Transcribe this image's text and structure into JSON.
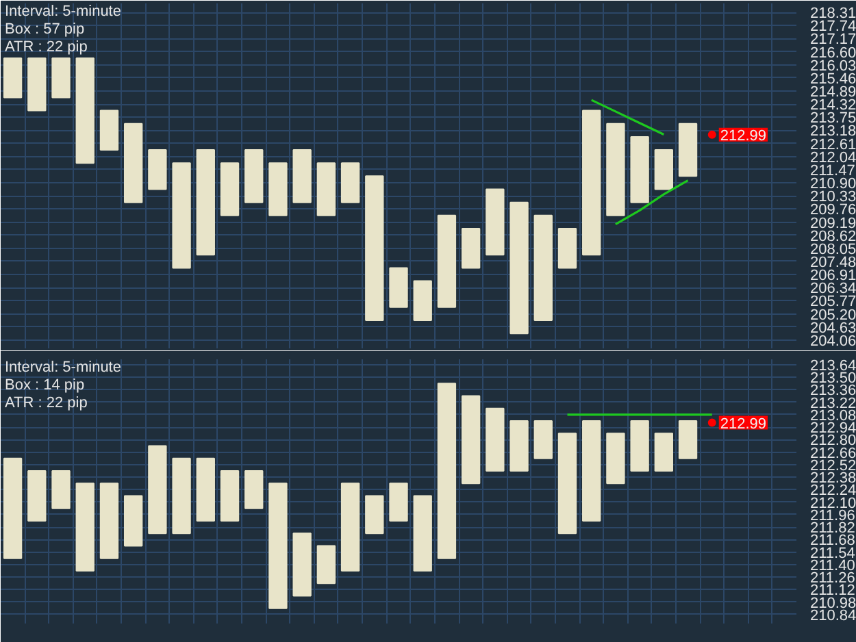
{
  "chart_data": [
    {
      "type": "bar",
      "categories": [
        null,
        null,
        null,
        null,
        null,
        null,
        null,
        null,
        null,
        null,
        null,
        null,
        null,
        null,
        null,
        null,
        null,
        null,
        null,
        null,
        null,
        null,
        null,
        null,
        null,
        null,
        null,
        null,
        null,
        null,
        null,
        null,
        null
      ],
      "ylim": [
        203.7,
        218.7
      ],
      "yticks": [
        218.31,
        217.74,
        217.17,
        {
          "value": 216.6,
          "label": "216.60"
        },
        216.03,
        215.46,
        214.89,
        214.32,
        213.75,
        213.18,
        212.61,
        212.04,
        211.47,
        {
          "value": 210.9,
          "label": "210.90"
        },
        210.33,
        209.76,
        209.19,
        208.62,
        208.05,
        207.48,
        206.91,
        206.34,
        205.77,
        {
          "value": 205.2,
          "label": "205.20"
        },
        204.63,
        204.06
      ],
      "tick_labels": "y",
      "grid": true,
      "annotations": [
        "Interval: 5-minute",
        "Box : 57 pip",
        "ATR : 22 pip"
      ],
      "series": [
        {
          "color": "#e8e4c9",
          "base": [
            214.61,
            214.04,
            214.61,
            211.76,
            212.33,
            210.05,
            210.62,
            207.2,
            207.77,
            209.48,
            210.05,
            209.48,
            210.05,
            209.48,
            210.05,
            204.92,
            205.49,
            204.92,
            205.49,
            207.2,
            207.77,
            204.35,
            204.92,
            207.2,
            207.77,
            209.48,
            210.05,
            210.62,
            211.19,
            null,
            null,
            null,
            null
          ],
          "values": [
            1.71,
            2.28,
            1.71,
            4.56,
            1.71,
            3.42,
            1.71,
            4.56,
            4.56,
            2.28,
            2.28,
            2.28,
            2.28,
            2.28,
            1.71,
            6.27,
            1.71,
            1.71,
            3.99,
            1.71,
            2.85,
            5.7,
            4.56,
            1.71,
            6.27,
            3.99,
            2.85,
            1.71,
            2.28,
            null,
            null,
            null,
            null
          ]
        },
        {
          "type": "line",
          "color": "#1ec81e",
          "values": [
            null,
            null,
            null,
            null,
            null,
            null,
            null,
            null,
            null,
            null,
            null,
            null,
            null,
            null,
            null,
            null,
            null,
            null,
            null,
            null,
            null,
            null,
            null,
            null,
            214.5,
            214.0,
            213.5,
            213.0,
            null,
            null,
            null,
            null,
            null
          ]
        },
        {
          "type": "line",
          "color": "#1ec81e",
          "values": [
            null,
            null,
            null,
            null,
            null,
            null,
            null,
            null,
            null,
            null,
            null,
            null,
            null,
            null,
            null,
            null,
            null,
            null,
            null,
            null,
            null,
            null,
            null,
            null,
            null,
            209.1,
            209.7,
            210.4,
            211.0,
            null,
            null,
            null,
            null
          ]
        },
        {
          "type": "scatter",
          "marker": "circle",
          "color": "#ff0000",
          "values": [
            null,
            null,
            null,
            null,
            null,
            null,
            null,
            null,
            null,
            null,
            null,
            null,
            null,
            null,
            null,
            null,
            null,
            null,
            null,
            null,
            null,
            null,
            null,
            null,
            null,
            null,
            null,
            null,
            null,
            212.99,
            null,
            null,
            null
          ],
          "value_labels": [
            null,
            null,
            null,
            null,
            null,
            null,
            null,
            null,
            null,
            null,
            null,
            null,
            null,
            null,
            null,
            null,
            null,
            null,
            null,
            null,
            null,
            null,
            null,
            null,
            null,
            null,
            null,
            null,
            null,
            "212.99",
            null,
            null,
            null
          ]
        }
      ]
    },
    {
      "type": "bar",
      "categories": [
        null,
        null,
        null,
        null,
        null,
        null,
        null,
        null,
        null,
        null,
        null,
        null,
        null,
        null,
        null,
        null,
        null,
        null,
        null,
        null,
        null,
        null,
        null,
        null,
        null,
        null,
        null,
        null,
        null,
        null,
        null,
        null,
        null
      ],
      "ylim": [
        210.74,
        213.7
      ],
      "yticks": [
        213.64,
        {
          "value": 213.5,
          "label": "213.50"
        },
        213.36,
        213.22,
        213.08,
        212.94,
        {
          "value": 212.8,
          "label": "212.80"
        },
        212.66,
        212.52,
        212.38,
        212.24,
        {
          "value": 212.1,
          "label": "212.10"
        },
        211.96,
        211.82,
        211.68,
        211.54,
        {
          "value": 211.4,
          "label": "211.40"
        },
        211.26,
        211.12,
        210.98,
        210.84
      ],
      "tick_labels": "y",
      "grid": true,
      "annotations": [
        "Interval: 5-minute",
        "Box : 14 pip",
        "ATR : 22 pip"
      ],
      "series": [
        {
          "color": "#e8e4c9",
          "base": [
            211.47,
            211.89,
            212.03,
            211.33,
            211.47,
            211.61,
            211.75,
            211.75,
            211.89,
            211.89,
            212.03,
            210.91,
            211.05,
            211.19,
            211.33,
            211.75,
            211.89,
            211.33,
            211.47,
            212.31,
            212.45,
            212.45,
            212.59,
            211.75,
            211.89,
            212.31,
            212.45,
            212.45,
            212.59,
            null,
            null,
            null,
            null
          ],
          "values": [
            1.12,
            0.56,
            0.42,
            0.98,
            0.84,
            0.56,
            0.98,
            0.84,
            0.7,
            0.56,
            0.42,
            1.4,
            0.7,
            0.42,
            0.98,
            0.42,
            0.42,
            0.84,
            1.96,
            0.98,
            0.7,
            0.56,
            0.42,
            1.12,
            1.12,
            0.56,
            0.56,
            0.42,
            0.42,
            null,
            null,
            null,
            null
          ]
        },
        {
          "type": "line",
          "color": "#1ec81e",
          "values": [
            null,
            null,
            null,
            null,
            null,
            null,
            null,
            null,
            null,
            null,
            null,
            null,
            null,
            null,
            null,
            null,
            null,
            null,
            null,
            null,
            null,
            null,
            null,
            213.08,
            213.08,
            213.08,
            213.08,
            213.08,
            213.08,
            213.08,
            null,
            null,
            null
          ]
        },
        {
          "type": "scatter",
          "marker": "circle",
          "color": "#ff0000",
          "values": [
            null,
            null,
            null,
            null,
            null,
            null,
            null,
            null,
            null,
            null,
            null,
            null,
            null,
            null,
            null,
            null,
            null,
            null,
            null,
            null,
            null,
            null,
            null,
            null,
            null,
            null,
            null,
            null,
            null,
            212.99,
            null,
            null,
            null
          ],
          "value_labels": [
            null,
            null,
            null,
            null,
            null,
            null,
            null,
            null,
            null,
            null,
            null,
            null,
            null,
            null,
            null,
            null,
            null,
            null,
            null,
            null,
            null,
            null,
            null,
            null,
            null,
            null,
            null,
            null,
            null,
            "212.99",
            null,
            null,
            null
          ]
        }
      ]
    }
  ]
}
